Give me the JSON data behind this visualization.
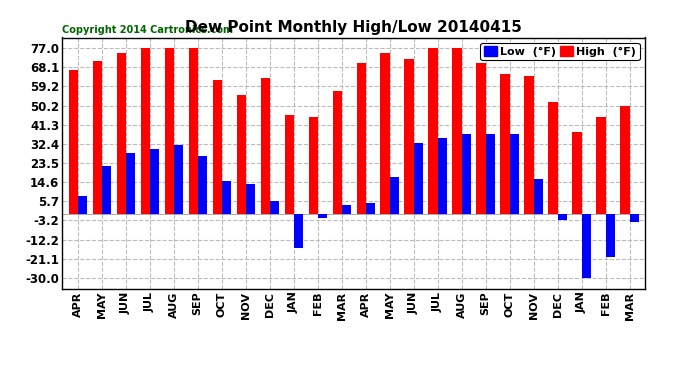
{
  "title": "Dew Point Monthly High/Low 20140415",
  "copyright": "Copyright 2014 Cartronics.com",
  "categories": [
    "APR",
    "MAY",
    "JUN",
    "JUL",
    "AUG",
    "SEP",
    "OCT",
    "NOV",
    "DEC",
    "JAN",
    "FEB",
    "MAR",
    "APR",
    "MAY",
    "JUN",
    "JUL",
    "AUG",
    "SEP",
    "OCT",
    "NOV",
    "DEC",
    "JAN",
    "FEB",
    "MAR"
  ],
  "high_values": [
    67,
    71,
    75,
    77,
    77,
    77,
    62,
    55,
    63,
    46,
    45,
    57,
    70,
    75,
    72,
    77,
    77,
    70,
    65,
    64,
    52,
    38,
    45,
    50
  ],
  "low_values": [
    8,
    22,
    28,
    30,
    32,
    27,
    15,
    14,
    6,
    -16,
    -2,
    4,
    5,
    17,
    33,
    35,
    37,
    37,
    37,
    16,
    -3,
    -30,
    -20,
    -4
  ],
  "high_color": "#FF0000",
  "low_color": "#0000FF",
  "bg_color": "#FFFFFF",
  "plot_bg_color": "#FFFFFF",
  "grid_color": "#BBBBBB",
  "yticks": [
    -30.0,
    -21.1,
    -12.2,
    -3.2,
    5.7,
    14.6,
    23.5,
    32.4,
    41.3,
    50.2,
    59.2,
    68.1,
    77.0
  ],
  "ylim": [
    -35,
    82
  ],
  "bar_width": 0.38,
  "legend_low_label": "Low  (°F)",
  "legend_high_label": "High  (°F)"
}
